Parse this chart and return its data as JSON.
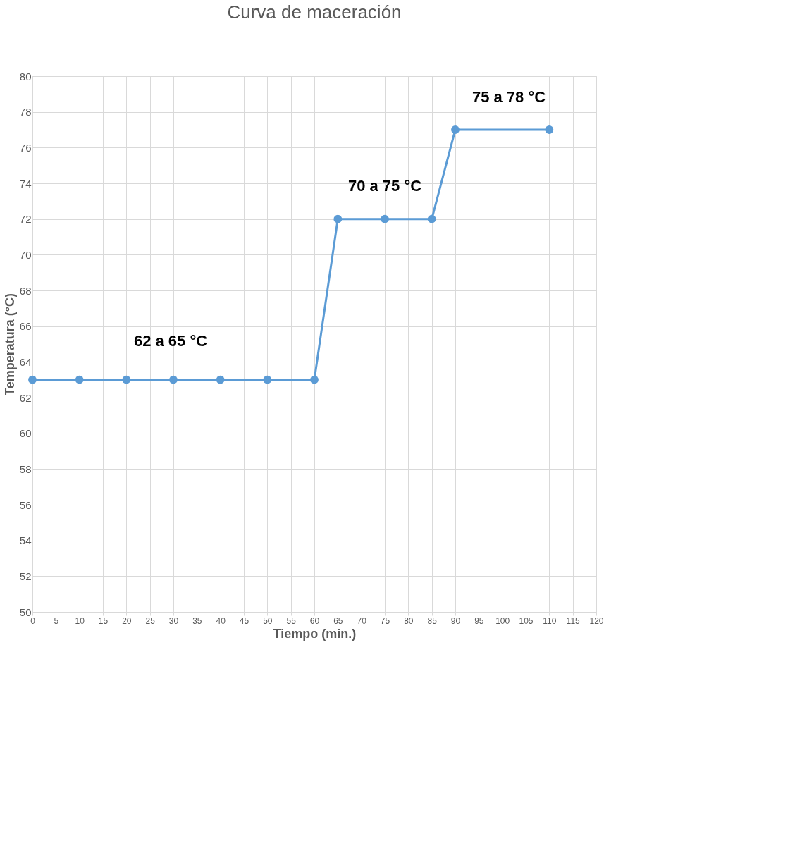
{
  "chart_data": {
    "type": "line",
    "title": "Curva de maceración",
    "xlabel": "Tiempo (min.)",
    "ylabel": "Temperatura (°C)",
    "x": [
      0,
      10,
      20,
      30,
      40,
      50,
      60,
      65,
      75,
      85,
      90,
      110
    ],
    "series": [
      {
        "color": "#5b9bd5",
        "values": [
          63,
          63,
          63,
          63,
          63,
          63,
          63,
          72,
          72,
          72,
          77,
          77
        ]
      }
    ],
    "xlim": [
      0,
      120
    ],
    "xticks": [
      0,
      5,
      10,
      15,
      20,
      25,
      30,
      35,
      40,
      45,
      50,
      55,
      60,
      65,
      70,
      75,
      80,
      85,
      90,
      95,
      100,
      105,
      110,
      115,
      120
    ],
    "ylim": [
      50,
      80
    ],
    "yticks": [
      50,
      52,
      54,
      56,
      58,
      60,
      62,
      64,
      66,
      68,
      70,
      72,
      74,
      76,
      78,
      80
    ],
    "grid": true,
    "marker": "circle",
    "line_style": "solid",
    "annotations": [
      "62 a 65 °C",
      "70 a 75 °C",
      "75 a 78 °C"
    ]
  }
}
